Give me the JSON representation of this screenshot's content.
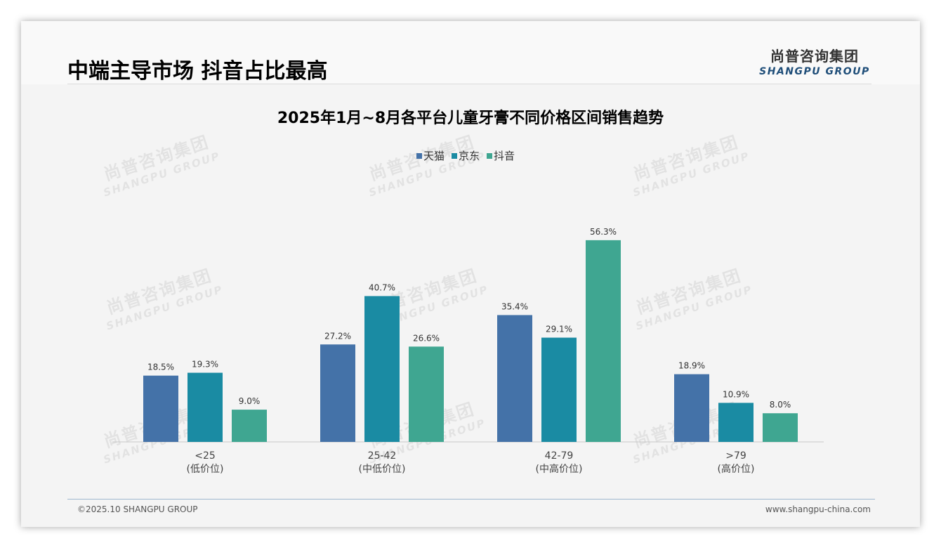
{
  "page": {
    "title": "中端主导市场 抖音占比最高",
    "logo_cn": "尚普咨询集团",
    "logo_en": "SHANGPU GROUP",
    "watermark_cn": "尚普咨询集团",
    "watermark_en": "SHANGPU GROUP",
    "footer_left": "©2025.10 SHANGPU GROUP",
    "footer_right": "www.shangpu-china.com"
  },
  "colors": {
    "series": [
      "#4472a8",
      "#1a8ba3",
      "#3fa691"
    ]
  },
  "chart_data": {
    "type": "bar",
    "title": "2025年1月~8月各平台儿童牙膏不同价格区间销售趋势",
    "categories": [
      {
        "range": "<25",
        "label": "(低价位)"
      },
      {
        "range": "25-42",
        "label": "(中低价位)"
      },
      {
        "range": "42-79",
        "label": "(中高价位)"
      },
      {
        "range": ">79",
        "label": "(高价位)"
      }
    ],
    "series": [
      {
        "name": "天猫",
        "values": [
          18.5,
          27.2,
          35.4,
          18.9
        ],
        "labels": [
          "18.5%",
          "27.2%",
          "35.4%",
          "18.9%"
        ]
      },
      {
        "name": "京东",
        "values": [
          19.3,
          40.7,
          29.1,
          10.9
        ],
        "labels": [
          "19.3%",
          "40.7%",
          "29.1%",
          "10.9%"
        ]
      },
      {
        "name": "抖音",
        "values": [
          9.0,
          26.6,
          56.3,
          8.0
        ],
        "labels": [
          "9.0%",
          "26.6%",
          "56.3%",
          "8.0%"
        ]
      }
    ],
    "unit": "%",
    "legend_position": "top-center",
    "grid": false
  }
}
